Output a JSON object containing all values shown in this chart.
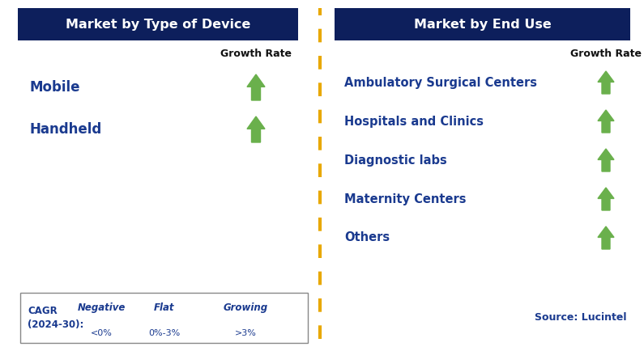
{
  "left_title": "Market by Type of Device",
  "right_title": "Market by End Use",
  "left_items": [
    "Mobile",
    "Handheld"
  ],
  "right_items": [
    "Ambulatory Surgical Centers",
    "Hospitals and Clinics",
    "Diagnostic labs",
    "Maternity Centers",
    "Others"
  ],
  "header_bg_color": "#0d1f5c",
  "header_text_color": "#ffffff",
  "item_text_color": "#1a3a8f",
  "growth_rate_label": "Growth Rate",
  "growth_rate_color": "#111111",
  "arrow_up_green": "#6ab04c",
  "arrow_down_red": "#bb0000",
  "arrow_flat_orange": "#f0a500",
  "divider_color": "#e8a800",
  "legend_cagr": "CAGR\n(2024-30):",
  "legend_negative_label": "Negative",
  "legend_negative_value": "<0%",
  "legend_flat_label": "Flat",
  "legend_flat_value": "0%-3%",
  "legend_growing_label": "Growing",
  "legend_growing_value": ">3%",
  "source_text": "Source: Lucintel",
  "bg_color": "#ffffff",
  "fig_width": 7.95,
  "fig_height": 4.34
}
